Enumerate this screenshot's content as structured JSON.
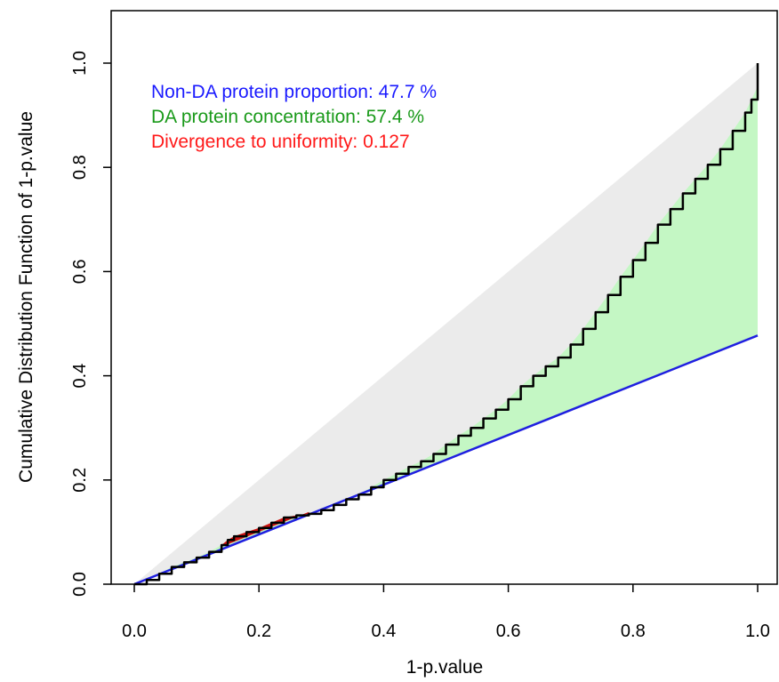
{
  "chart_data": {
    "type": "area",
    "xlabel": "1-p.value",
    "ylabel": "Cumulative Distribution Function of 1-p.value",
    "xlim": [
      -0.04,
      1.04
    ],
    "ylim": [
      -0.01,
      1.1
    ],
    "x_ticks": [
      "0.0",
      "0.2",
      "0.4",
      "0.6",
      "0.8",
      "1.0"
    ],
    "y_ticks": [
      "0.0",
      "0.2",
      "0.4",
      "0.6",
      "0.8",
      "1.0"
    ],
    "grid": false,
    "annotations": [
      {
        "text": "Non-DA protein proportion:  47.7 %",
        "color": "#1a1aff"
      },
      {
        "text": "DA protein concentration:  57.4 %",
        "color": "#1a9a1a"
      },
      {
        "text": "Divergence to uniformity:  0.127",
        "color": "#ff1a1a"
      }
    ],
    "non_da_line": {
      "slope": 0.4773,
      "color": "#1f1fe0"
    },
    "uniform_line": {
      "from": [
        0,
        0
      ],
      "to": [
        1,
        1
      ]
    },
    "fill_colors": {
      "uniform_region": "#ebebeb",
      "da_region": "#c4f7c4",
      "divergence_region": "#cc1111"
    },
    "cdf": {
      "color": "#000000",
      "x": [
        0.0,
        0.02,
        0.04,
        0.06,
        0.08,
        0.1,
        0.12,
        0.14,
        0.15,
        0.16,
        0.18,
        0.2,
        0.22,
        0.24,
        0.26,
        0.28,
        0.3,
        0.32,
        0.34,
        0.36,
        0.38,
        0.4,
        0.42,
        0.44,
        0.46,
        0.48,
        0.5,
        0.52,
        0.54,
        0.56,
        0.58,
        0.6,
        0.62,
        0.64,
        0.66,
        0.68,
        0.7,
        0.72,
        0.74,
        0.76,
        0.78,
        0.8,
        0.82,
        0.84,
        0.86,
        0.88,
        0.9,
        0.92,
        0.94,
        0.96,
        0.98,
        0.99,
        1.0,
        1.0
      ],
      "y": [
        0.0,
        0.008,
        0.02,
        0.033,
        0.042,
        0.051,
        0.062,
        0.075,
        0.085,
        0.092,
        0.1,
        0.108,
        0.118,
        0.128,
        0.132,
        0.135,
        0.142,
        0.152,
        0.163,
        0.172,
        0.186,
        0.2,
        0.212,
        0.225,
        0.236,
        0.25,
        0.268,
        0.285,
        0.3,
        0.318,
        0.335,
        0.355,
        0.38,
        0.4,
        0.418,
        0.435,
        0.46,
        0.49,
        0.522,
        0.555,
        0.59,
        0.622,
        0.655,
        0.69,
        0.72,
        0.75,
        0.778,
        0.805,
        0.835,
        0.87,
        0.905,
        0.93,
        0.955,
        1.0
      ]
    }
  }
}
